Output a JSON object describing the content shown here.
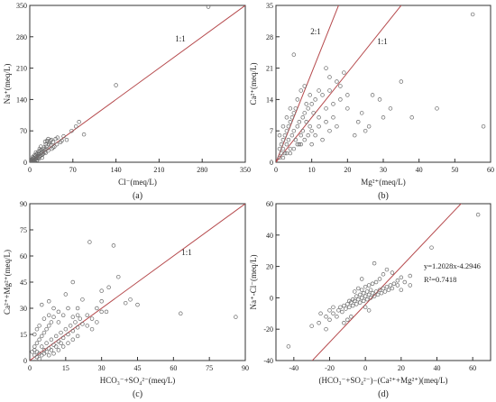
{
  "chart_data": [
    {
      "type": "scatter",
      "panel_label": "(a)",
      "xlabel": "Cl⁻(meq/L)",
      "ylabel": "Na⁺(meq/L)",
      "xlim": [
        0,
        350
      ],
      "ylim": [
        0,
        350
      ],
      "xticks": [
        0,
        70,
        140,
        210,
        280,
        350
      ],
      "yticks": [
        0,
        70,
        140,
        210,
        280,
        350
      ],
      "xtick_labels": [
        "0",
        "70",
        "140",
        "210",
        "280",
        "350"
      ],
      "ytick_labels": [
        "0",
        "70",
        "140",
        "210",
        "280",
        "350"
      ],
      "reference_lines": [
        {
          "label": "1:1",
          "slope": 1
        }
      ],
      "points": [
        [
          2,
          1
        ],
        [
          3,
          2
        ],
        [
          4,
          3
        ],
        [
          5,
          4
        ],
        [
          6,
          5
        ],
        [
          7,
          3
        ],
        [
          8,
          6
        ],
        [
          9,
          8
        ],
        [
          10,
          7
        ],
        [
          11,
          12
        ],
        [
          12,
          9
        ],
        [
          13,
          14
        ],
        [
          14,
          10
        ],
        [
          15,
          18
        ],
        [
          16,
          13
        ],
        [
          18,
          15
        ],
        [
          19,
          20
        ],
        [
          20,
          16
        ],
        [
          21,
          24
        ],
        [
          22,
          19
        ],
        [
          24,
          22
        ],
        [
          25,
          28
        ],
        [
          26,
          21
        ],
        [
          27,
          35
        ],
        [
          28,
          30
        ],
        [
          30,
          26
        ],
        [
          31,
          40
        ],
        [
          32,
          44
        ],
        [
          34,
          38
        ],
        [
          35,
          50
        ],
        [
          36,
          30
        ],
        [
          38,
          45
        ],
        [
          40,
          35
        ],
        [
          42,
          52
        ],
        [
          44,
          40
        ],
        [
          28,
          48
        ],
        [
          22,
          30
        ],
        [
          17,
          26
        ],
        [
          13,
          20
        ],
        [
          9,
          14
        ],
        [
          6,
          10
        ],
        [
          4,
          7
        ],
        [
          3,
          5
        ],
        [
          50,
          45
        ],
        [
          55,
          58
        ],
        [
          60,
          50
        ],
        [
          68,
          70
        ],
        [
          75,
          80
        ],
        [
          80,
          90
        ],
        [
          88,
          62
        ],
        [
          140,
          172
        ],
        [
          290,
          347
        ],
        [
          12,
          5
        ],
        [
          15,
          8
        ],
        [
          20,
          10
        ],
        [
          5,
          12
        ],
        [
          8,
          16
        ],
        [
          10,
          22
        ],
        [
          18,
          35
        ],
        [
          25,
          46
        ],
        [
          30,
          52
        ],
        [
          16,
          30
        ],
        [
          14,
          24
        ],
        [
          7,
          9
        ],
        [
          23,
          33
        ],
        [
          26,
          40
        ],
        [
          33,
          48
        ],
        [
          38,
          33
        ],
        [
          45,
          55
        ],
        [
          52,
          48
        ],
        [
          1,
          2
        ],
        [
          2,
          4
        ],
        [
          11,
          18
        ],
        [
          19,
          28
        ]
      ]
    },
    {
      "type": "scatter",
      "panel_label": "(b)",
      "xlabel": "Mg²⁺(meq/L)",
      "ylabel": "Ca²⁺(meq/L)",
      "xlim": [
        0,
        60
      ],
      "ylim": [
        0,
        35
      ],
      "xticks": [
        0,
        10,
        20,
        30,
        40,
        50,
        60
      ],
      "yticks": [
        0,
        7,
        14,
        21,
        28,
        35
      ],
      "xtick_labels": [
        "0",
        "10",
        "20",
        "30",
        "40",
        "50",
        "60"
      ],
      "ytick_labels": [
        "0",
        "7",
        "14",
        "21",
        "28",
        "35"
      ],
      "reference_lines": [
        {
          "label": "2:1",
          "slope": 2
        },
        {
          "label": "1:1",
          "slope": 1
        }
      ],
      "points": [
        [
          1,
          1
        ],
        [
          1.5,
          2
        ],
        [
          2,
          3
        ],
        [
          2.5,
          2
        ],
        [
          3,
          4
        ],
        [
          3.5,
          5
        ],
        [
          4,
          3
        ],
        [
          4.5,
          6
        ],
        [
          5,
          7
        ],
        [
          5.5,
          5
        ],
        [
          6,
          8
        ],
        [
          6.5,
          9
        ],
        [
          7,
          6
        ],
        [
          7.5,
          10
        ],
        [
          8,
          11
        ],
        [
          8.5,
          9
        ],
        [
          9,
          12
        ],
        [
          9.5,
          8
        ],
        [
          10,
          13
        ],
        [
          10.5,
          11
        ],
        [
          11,
          14
        ],
        [
          12,
          10
        ],
        [
          13,
          15
        ],
        [
          14,
          12
        ],
        [
          15,
          16
        ],
        [
          16,
          13
        ],
        [
          17,
          18
        ],
        [
          18,
          14
        ],
        [
          19,
          20
        ],
        [
          20,
          15
        ],
        [
          1,
          3
        ],
        [
          2,
          5
        ],
        [
          3,
          7
        ],
        [
          4,
          9
        ],
        [
          5,
          11
        ],
        [
          6,
          14
        ],
        [
          7,
          16
        ],
        [
          8,
          17
        ],
        [
          2,
          1
        ],
        [
          3,
          2
        ],
        [
          4,
          2
        ],
        [
          5,
          3
        ],
        [
          6,
          4
        ],
        [
          7,
          4
        ],
        [
          8,
          5
        ],
        [
          9,
          6
        ],
        [
          10,
          7
        ],
        [
          12,
          8
        ],
        [
          14,
          9
        ],
        [
          16,
          10
        ],
        [
          5,
          24
        ],
        [
          14,
          21
        ],
        [
          20,
          12
        ],
        [
          23,
          9
        ],
        [
          25,
          7
        ],
        [
          27,
          15
        ],
        [
          29,
          14
        ],
        [
          32,
          12
        ],
        [
          35,
          18
        ],
        [
          38,
          10
        ],
        [
          45,
          12
        ],
        [
          58,
          8
        ],
        [
          55,
          33
        ],
        [
          1,
          6
        ],
        [
          2,
          8
        ],
        [
          3,
          10
        ],
        [
          4,
          12
        ],
        [
          1.5,
          4
        ],
        [
          2.5,
          6
        ],
        [
          3.5,
          8
        ],
        [
          4.5,
          10
        ],
        [
          5.5,
          12
        ],
        [
          6.5,
          4
        ],
        [
          7.5,
          7
        ],
        [
          8.5,
          13
        ],
        [
          9.5,
          15
        ],
        [
          10,
          4
        ],
        [
          11,
          6
        ],
        [
          13,
          5
        ],
        [
          15,
          7
        ],
        [
          17,
          8
        ],
        [
          22,
          6
        ],
        [
          24,
          11
        ],
        [
          26,
          8
        ],
        [
          30,
          10
        ],
        [
          12,
          16
        ],
        [
          15,
          19
        ],
        [
          18,
          17
        ]
      ]
    },
    {
      "type": "scatter",
      "panel_label": "(c)",
      "xlabel": "HCO₃⁻+SO₄²⁻(meq/L)",
      "ylabel": "Ca²⁺+Mg²⁺(meq/L)",
      "xlim": [
        0,
        90
      ],
      "ylim": [
        0,
        90
      ],
      "xticks": [
        0,
        15,
        30,
        45,
        60,
        75,
        90
      ],
      "yticks": [
        0,
        15,
        30,
        45,
        60,
        75,
        90
      ],
      "xtick_labels": [
        "0",
        "15",
        "30",
        "45",
        "60",
        "75",
        "90"
      ],
      "ytick_labels": [
        "0",
        "15",
        "30",
        "45",
        "60",
        "75",
        "90"
      ],
      "reference_lines": [
        {
          "label": "1:1",
          "slope": 1
        }
      ],
      "points": [
        [
          2,
          3
        ],
        [
          3,
          5
        ],
        [
          4,
          4
        ],
        [
          5,
          8
        ],
        [
          6,
          6
        ],
        [
          7,
          10
        ],
        [
          8,
          7
        ],
        [
          9,
          12
        ],
        [
          10,
          9
        ],
        [
          11,
          14
        ],
        [
          12,
          11
        ],
        [
          13,
          16
        ],
        [
          14,
          13
        ],
        [
          15,
          18
        ],
        [
          16,
          15
        ],
        [
          17,
          20
        ],
        [
          18,
          17
        ],
        [
          19,
          22
        ],
        [
          20,
          19
        ],
        [
          21,
          24
        ],
        [
          22,
          21
        ],
        [
          24,
          26
        ],
        [
          26,
          24
        ],
        [
          28,
          30
        ],
        [
          30,
          28
        ],
        [
          2,
          8
        ],
        [
          3,
          10
        ],
        [
          4,
          12
        ],
        [
          5,
          14
        ],
        [
          6,
          16
        ],
        [
          7,
          18
        ],
        [
          8,
          20
        ],
        [
          9,
          22
        ],
        [
          10,
          25
        ],
        [
          3,
          2
        ],
        [
          4,
          1
        ],
        [
          5,
          3
        ],
        [
          6,
          4
        ],
        [
          7,
          5
        ],
        [
          8,
          3
        ],
        [
          9,
          6
        ],
        [
          10,
          4
        ],
        [
          12,
          6
        ],
        [
          14,
          8
        ],
        [
          16,
          10
        ],
        [
          18,
          12
        ],
        [
          20,
          14
        ],
        [
          5,
          32
        ],
        [
          8,
          34
        ],
        [
          12,
          28
        ],
        [
          15,
          38
        ],
        [
          18,
          45
        ],
        [
          20,
          30
        ],
        [
          22,
          35
        ],
        [
          25,
          68
        ],
        [
          30,
          40
        ],
        [
          33,
          42
        ],
        [
          35,
          66
        ],
        [
          37,
          48
        ],
        [
          40,
          33
        ],
        [
          42,
          35
        ],
        [
          45,
          32
        ],
        [
          63,
          27
        ],
        [
          86,
          25
        ],
        [
          4,
          20
        ],
        [
          6,
          24
        ],
        [
          8,
          26
        ],
        [
          10,
          30
        ],
        [
          12,
          22
        ],
        [
          14,
          26
        ],
        [
          16,
          30
        ],
        [
          18,
          25
        ],
        [
          20,
          26
        ],
        [
          24,
          20
        ],
        [
          26,
          18
        ],
        [
          28,
          22
        ],
        [
          30,
          34
        ],
        [
          32,
          28
        ],
        [
          2,
          15
        ],
        [
          3,
          18
        ],
        [
          1,
          5
        ],
        [
          2,
          6
        ],
        [
          11,
          8
        ],
        [
          13,
          10
        ]
      ]
    },
    {
      "type": "scatter",
      "panel_label": "(d)",
      "xlabel": "(HCO₃⁻+SO₄²⁻)−(Ca²⁺+Mg²⁺)(meq/L)",
      "ylabel": "Na⁺-Cl⁻(meq/L)",
      "xlim": [
        -50,
        70
      ],
      "ylim": [
        -40,
        60
      ],
      "xticks": [
        -40,
        -20,
        0,
        20,
        40,
        60
      ],
      "yticks": [
        -40,
        -20,
        0,
        20,
        40,
        60
      ],
      "xtick_labels": [
        "-40",
        "-20",
        "0",
        "20",
        "40",
        "60"
      ],
      "ytick_labels": [
        "-40",
        "-20",
        "0",
        "20",
        "40",
        "60"
      ],
      "fit": {
        "slope": 1.2028,
        "intercept": -4.2946
      },
      "annotations": [
        "y=1.2028x-4.2946",
        "R²=0.7418"
      ],
      "points": [
        [
          -43,
          -31
        ],
        [
          -26,
          -16
        ],
        [
          -22,
          -20
        ],
        [
          -20,
          -14
        ],
        [
          -18,
          -10
        ],
        [
          -16,
          -12
        ],
        [
          -15,
          -8
        ],
        [
          -14,
          -6
        ],
        [
          -13,
          -9
        ],
        [
          -12,
          -5
        ],
        [
          -11,
          -7
        ],
        [
          -10,
          -4
        ],
        [
          -9,
          -6
        ],
        [
          -8,
          -3
        ],
        [
          -7,
          -5
        ],
        [
          -6,
          -2
        ],
        [
          -5,
          -4
        ],
        [
          -4,
          -1
        ],
        [
          -3,
          -3
        ],
        [
          -2,
          0
        ],
        [
          -1,
          -2
        ],
        [
          0,
          1
        ],
        [
          1,
          -1
        ],
        [
          2,
          2
        ],
        [
          3,
          0
        ],
        [
          4,
          3
        ],
        [
          5,
          1
        ],
        [
          6,
          4
        ],
        [
          7,
          2
        ],
        [
          8,
          5
        ],
        [
          9,
          3
        ],
        [
          10,
          6
        ],
        [
          11,
          4
        ],
        [
          12,
          7
        ],
        [
          13,
          5
        ],
        [
          14,
          8
        ],
        [
          15,
          6
        ],
        [
          16,
          9
        ],
        [
          18,
          11
        ],
        [
          20,
          13
        ],
        [
          22,
          10
        ],
        [
          25,
          14
        ],
        [
          -6,
          4
        ],
        [
          -4,
          6
        ],
        [
          -2,
          5
        ],
        [
          0,
          7
        ],
        [
          2,
          8
        ],
        [
          4,
          9
        ],
        [
          6,
          10
        ],
        [
          8,
          12
        ],
        [
          10,
          15
        ],
        [
          12,
          18
        ],
        [
          5,
          22
        ],
        [
          -2,
          12
        ],
        [
          0,
          -6
        ],
        [
          2,
          -8
        ],
        [
          -8,
          -12
        ],
        [
          -10,
          -14
        ],
        [
          -12,
          -16
        ],
        [
          -18,
          -6
        ],
        [
          -20,
          -8
        ],
        [
          -22,
          -12
        ],
        [
          -30,
          -18
        ],
        [
          -25,
          -10
        ],
        [
          15,
          16
        ],
        [
          18,
          8
        ],
        [
          20,
          5
        ],
        [
          25,
          8
        ],
        [
          -1,
          3
        ],
        [
          1,
          4
        ],
        [
          3,
          5
        ],
        [
          -3,
          2
        ],
        [
          -5,
          1
        ],
        [
          -7,
          -1
        ],
        [
          -9,
          -2
        ],
        [
          37,
          32
        ],
        [
          63,
          53
        ]
      ]
    }
  ]
}
